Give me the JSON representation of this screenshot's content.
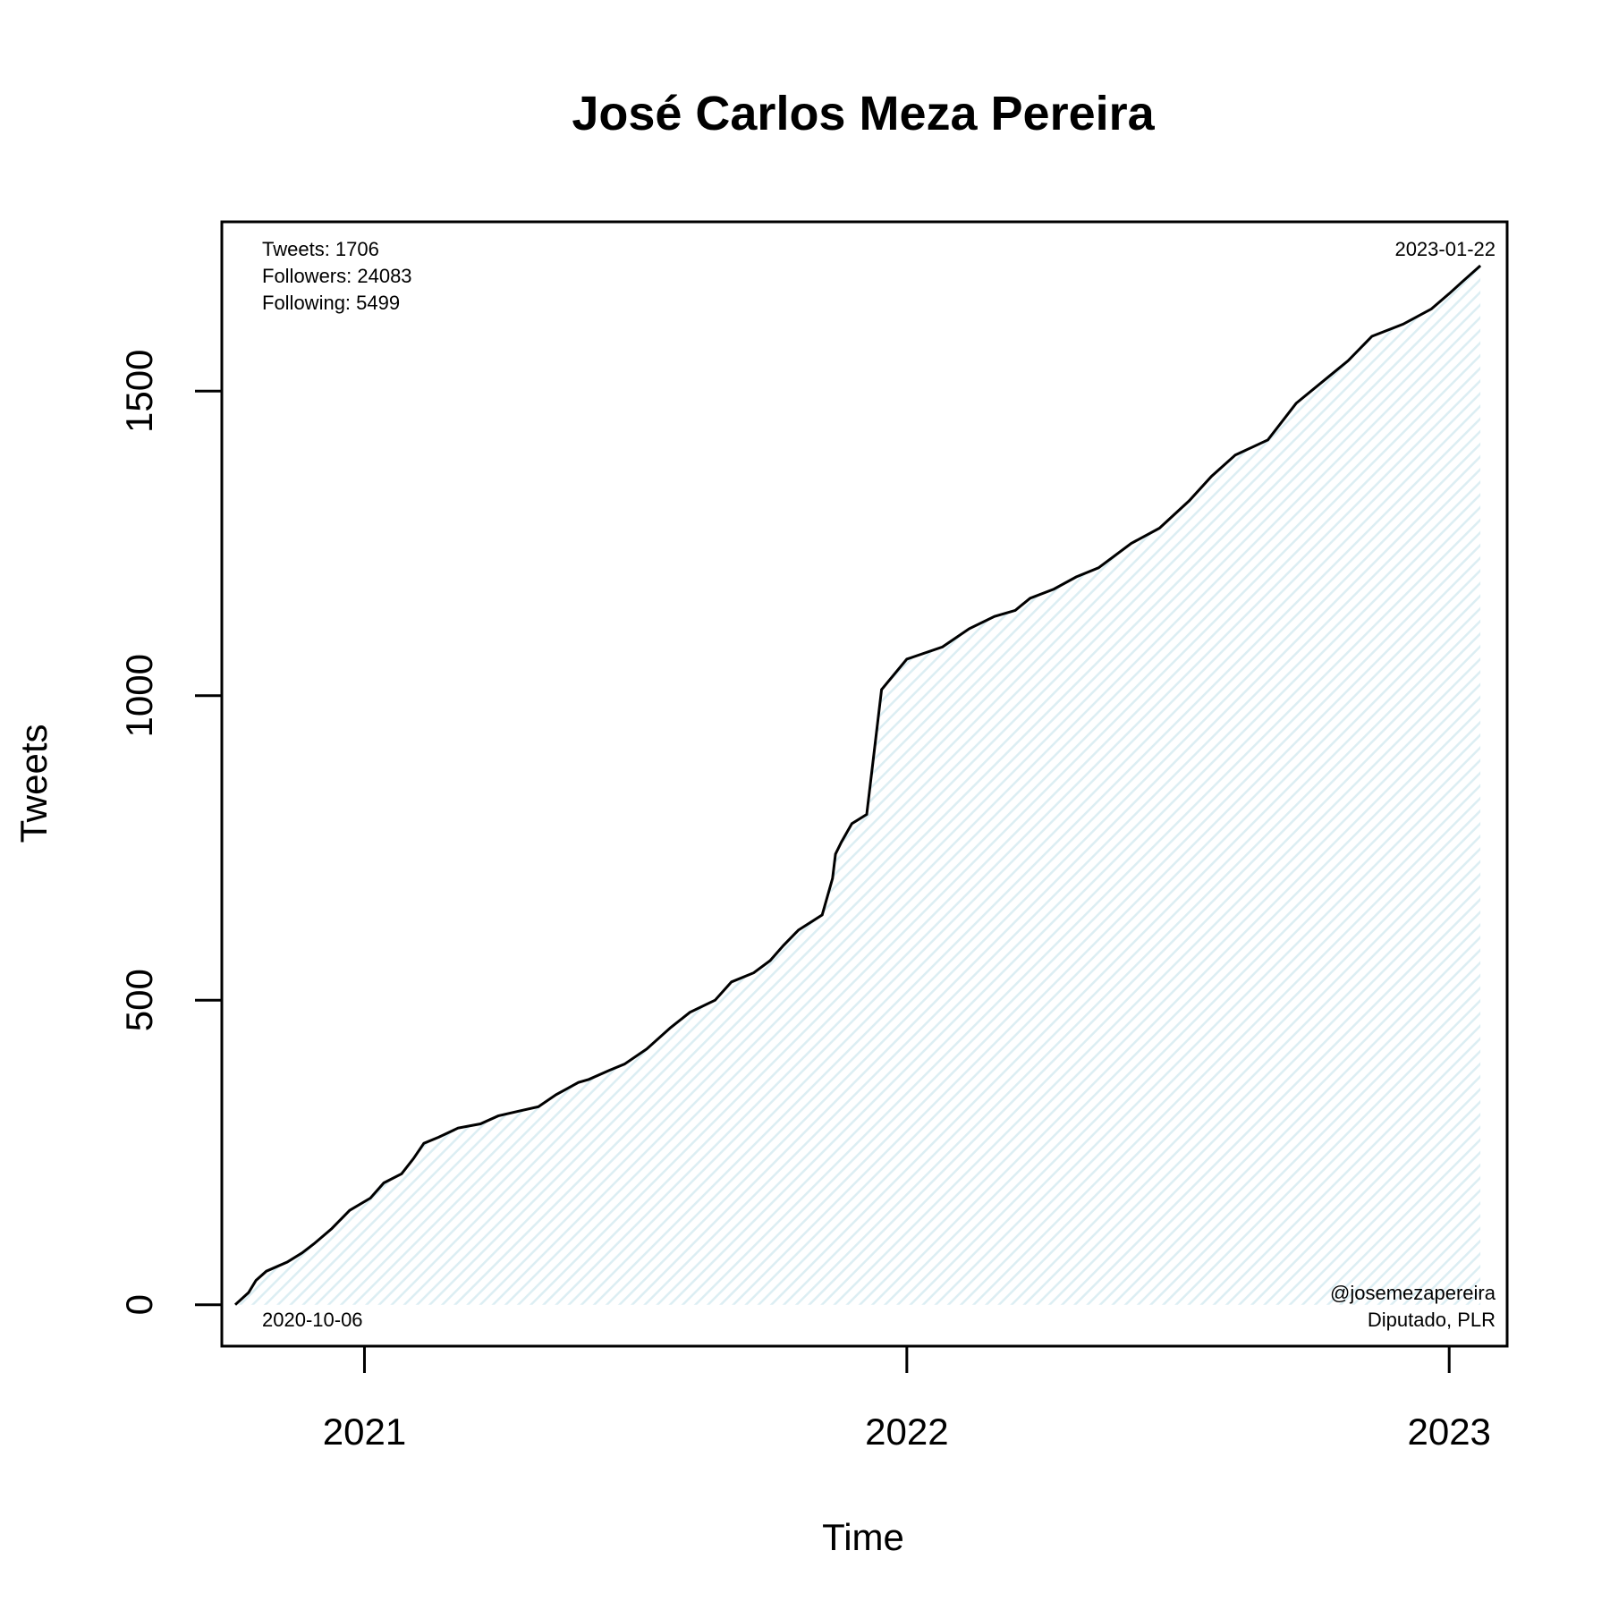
{
  "chart_data": {
    "type": "area",
    "title": "José Carlos Meza Pereira",
    "xlabel": "Time",
    "ylabel": "Tweets",
    "x_axis": "date",
    "xlim": [
      "2020-09-27",
      "2023-02-09"
    ],
    "ylim": [
      -68,
      1778
    ],
    "xticks": [
      {
        "date": "2021-01-01",
        "label": "2021"
      },
      {
        "date": "2022-01-01",
        "label": "2022"
      },
      {
        "date": "2023-01-01",
        "label": "2023"
      }
    ],
    "yticks": [
      {
        "value": 0,
        "label": "0"
      },
      {
        "value": 500,
        "label": "500"
      },
      {
        "value": 1000,
        "label": "1000"
      },
      {
        "value": 1500,
        "label": "1500"
      }
    ],
    "grid": false,
    "fill_color": "#e6f3f6",
    "line_color": "#000000",
    "annotations": {
      "stats": [
        "Tweets: 1706",
        "Followers: 24083",
        "Following: 5499"
      ],
      "start_date": "2020-10-06",
      "end_date": "2023-01-22",
      "handle": "@josemezapereira",
      "role": "Diputado, PLR"
    },
    "series": [
      {
        "x": [
          "2020-10-06",
          "2020-10-15",
          "2020-10-20",
          "2020-10-27",
          "2020-11-10",
          "2020-11-20",
          "2020-11-28",
          "2020-12-10",
          "2020-12-22",
          "2021-01-05",
          "2021-01-14",
          "2021-01-26",
          "2021-02-03",
          "2021-02-10",
          "2021-02-20",
          "2021-03-05",
          "2021-03-20",
          "2021-04-01",
          "2021-04-15",
          "2021-04-28",
          "2021-05-10",
          "2021-05-25",
          "2021-06-01",
          "2021-06-15",
          "2021-06-25",
          "2021-07-10",
          "2021-07-26",
          "2021-08-08",
          "2021-08-25",
          "2021-09-05",
          "2021-09-20",
          "2021-10-01",
          "2021-10-10",
          "2021-10-20",
          "2021-11-05",
          "2021-11-12",
          "2021-11-14",
          "2021-11-18",
          "2021-11-25",
          "2021-12-05",
          "2021-12-15",
          "2022-01-01",
          "2022-01-25",
          "2022-02-12",
          "2022-03-01",
          "2022-03-15",
          "2022-03-25",
          "2022-04-10",
          "2022-04-25",
          "2022-05-10",
          "2022-06-01",
          "2022-06-20",
          "2022-07-10",
          "2022-07-25",
          "2022-08-10",
          "2022-09-01",
          "2022-09-20",
          "2022-10-10",
          "2022-10-25",
          "2022-11-10",
          "2022-12-01",
          "2022-12-20",
          "2023-01-01",
          "2023-01-10",
          "2023-01-22"
        ],
        "y": [
          0,
          20,
          40,
          55,
          70,
          85,
          100,
          125,
          155,
          175,
          200,
          215,
          240,
          265,
          275,
          290,
          297,
          310,
          318,
          325,
          345,
          365,
          370,
          385,
          395,
          420,
          455,
          480,
          500,
          530,
          545,
          565,
          590,
          615,
          640,
          700,
          740,
          760,
          790,
          805,
          1010,
          1060,
          1080,
          1110,
          1130,
          1140,
          1160,
          1175,
          1195,
          1210,
          1250,
          1275,
          1320,
          1360,
          1395,
          1420,
          1480,
          1520,
          1550,
          1590,
          1610,
          1635,
          1660,
          1680,
          1706
        ]
      }
    ]
  }
}
